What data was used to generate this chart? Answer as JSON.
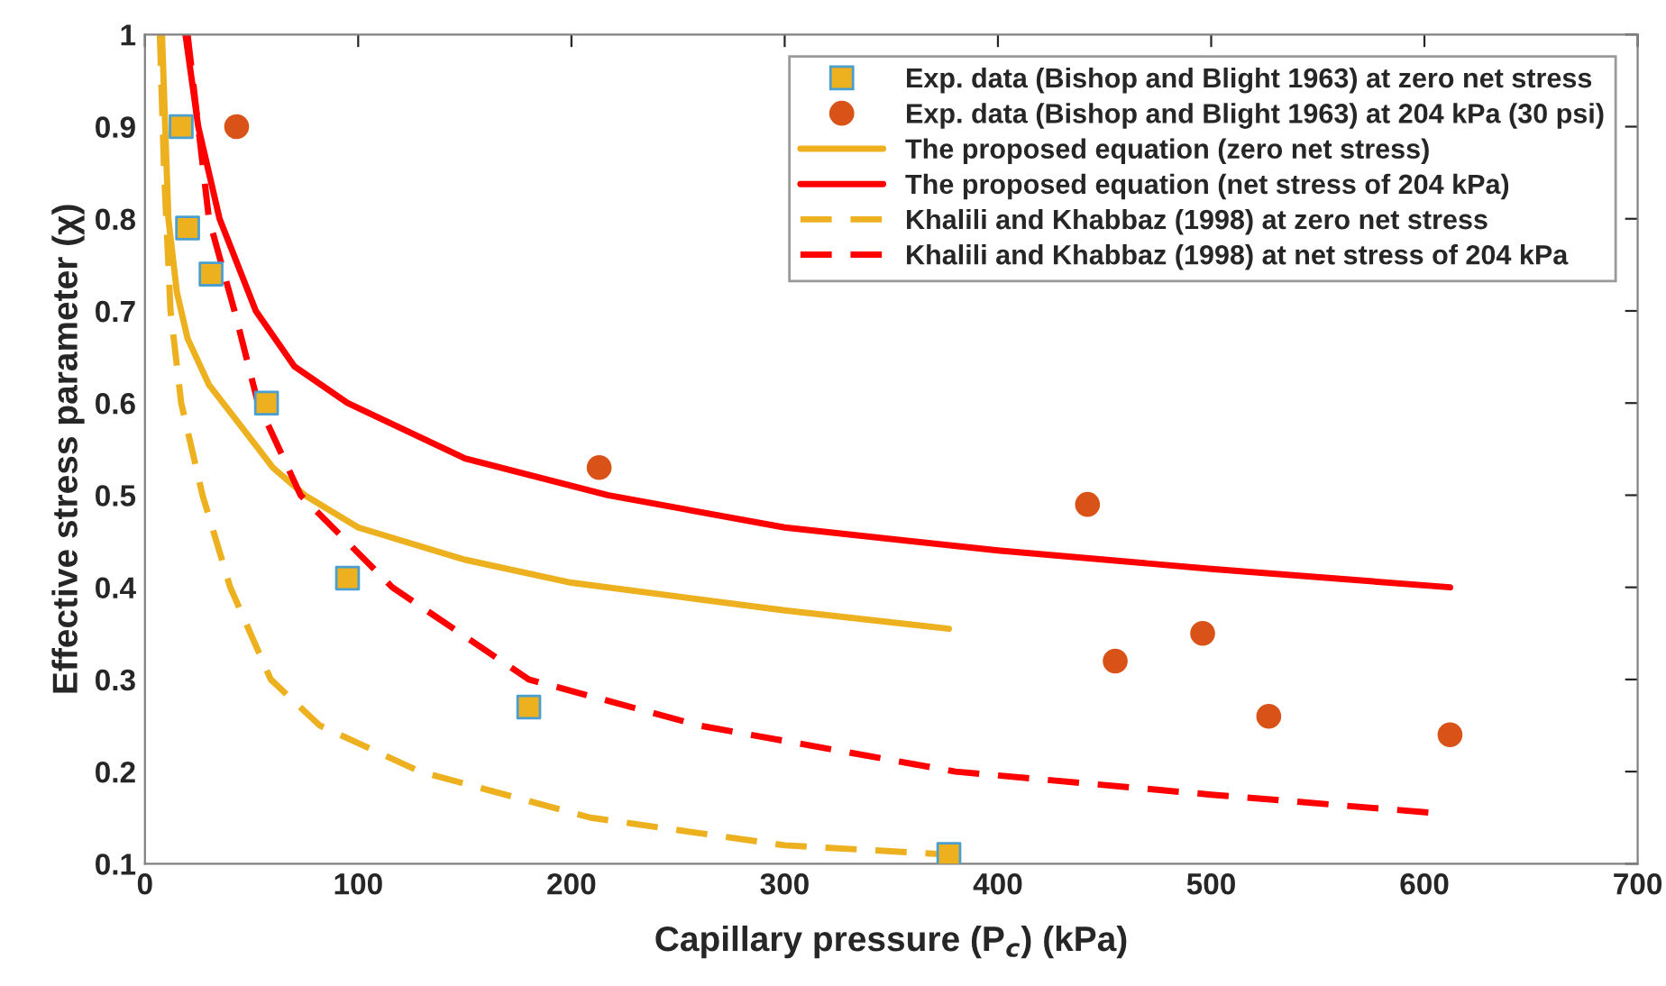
{
  "chart_data": {
    "type": "line",
    "xlabel": "Capillary pressure (P$_{c}$) (kPa)",
    "ylabel": "Effective stress parameter (χ)",
    "xlim": [
      0,
      700
    ],
    "ylim": [
      0.1,
      1
    ],
    "xticks": [
      0,
      100,
      200,
      300,
      400,
      500,
      600,
      700
    ],
    "yticks": [
      0.1,
      0.2,
      0.3,
      0.4,
      0.5,
      0.6,
      0.7,
      0.8,
      0.9,
      1
    ],
    "grid": false,
    "legend": "top right",
    "series": [
      {
        "name": "Exp. data (Bishop and Blight 1963) at zero net stress",
        "type": "scatter",
        "marker": "square",
        "color": "#edb120",
        "x": [
          17,
          20,
          31,
          57,
          95,
          180,
          377
        ],
        "values": [
          0.9,
          0.79,
          0.74,
          0.6,
          0.41,
          0.27,
          0.11
        ]
      },
      {
        "name": "Exp. data (Bishop and Blight 1963) at 204 kPa (30 psi)",
        "type": "scatter",
        "marker": "circle",
        "color": "#d95319",
        "x": [
          43,
          213,
          442,
          455,
          496,
          527,
          612
        ],
        "values": [
          0.9,
          0.53,
          0.49,
          0.32,
          0.35,
          0.26,
          0.24
        ]
      },
      {
        "name": "The proposed equation (zero net stress)",
        "line_style": "solid",
        "color": "#edb120",
        "x": [
          8,
          11,
          15,
          20,
          30,
          40,
          60,
          75,
          100,
          150,
          200,
          250,
          300,
          377
        ],
        "values": [
          1.0,
          0.8,
          0.72,
          0.67,
          0.62,
          0.59,
          0.53,
          0.5,
          0.465,
          0.43,
          0.405,
          0.39,
          0.375,
          0.355
        ]
      },
      {
        "name": "The proposed equation (net stress of 204 kPa)",
        "line_style": "solid",
        "color": "#ff0000",
        "x": [
          19,
          25,
          35,
          52,
          70,
          95,
          150,
          217,
          300,
          400,
          500,
          612
        ],
        "values": [
          1.0,
          0.9,
          0.8,
          0.7,
          0.64,
          0.6,
          0.54,
          0.5,
          0.465,
          0.44,
          0.42,
          0.4
        ]
      },
      {
        "name": "Khalili and Khabbaz (1998) at zero net stress",
        "line_style": "dashed",
        "color": "#edb120",
        "x": [
          7,
          9,
          12,
          17,
          27,
          40,
          59,
          82,
          129,
          209,
          300,
          377
        ],
        "values": [
          1.0,
          0.85,
          0.7,
          0.6,
          0.5,
          0.4,
          0.3,
          0.25,
          0.2,
          0.15,
          0.12,
          0.11
        ]
      },
      {
        "name": "Khalili and Khabbaz (1998) at net stress of 204 kPa",
        "line_style": "dashed",
        "color": "#ff0000",
        "x": [
          20,
          25,
          30,
          42,
          53,
          73,
          116,
          180,
          260,
          380,
          500,
          605
        ],
        "values": [
          1.0,
          0.9,
          0.8,
          0.7,
          0.6,
          0.5,
          0.4,
          0.3,
          0.25,
          0.2,
          0.175,
          0.155
        ]
      }
    ]
  }
}
